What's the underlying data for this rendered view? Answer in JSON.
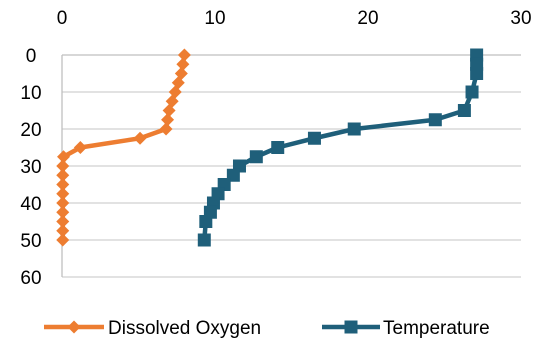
{
  "chart_data": {
    "type": "line",
    "title": "",
    "xlabel": "",
    "ylabel": "",
    "xlim": [
      0,
      30
    ],
    "ylim": [
      0,
      60
    ],
    "x_axis_position": "top",
    "y_axis_inverted": true,
    "x_ticks": [
      0,
      10,
      20,
      30
    ],
    "y_ticks": [
      0,
      10,
      20,
      30,
      40,
      50,
      60
    ],
    "grid": "horizontal",
    "legend_position": "bottom",
    "series": [
      {
        "name": "Dissolved Oxygen",
        "color": "#ED7D31",
        "marker": "diamond",
        "points": [
          [
            8.0,
            0
          ],
          [
            7.9,
            2.5
          ],
          [
            7.8,
            5
          ],
          [
            7.6,
            7.5
          ],
          [
            7.4,
            10
          ],
          [
            7.2,
            12.5
          ],
          [
            7.0,
            15
          ],
          [
            6.9,
            17.5
          ],
          [
            6.8,
            20
          ],
          [
            5.1,
            22.5
          ],
          [
            1.2,
            25
          ],
          [
            0.1,
            27.5
          ],
          [
            0.05,
            30
          ],
          [
            0.05,
            32.5
          ],
          [
            0.05,
            35
          ],
          [
            0.05,
            37.5
          ],
          [
            0.05,
            40
          ],
          [
            0.05,
            42.5
          ],
          [
            0.05,
            45
          ],
          [
            0.05,
            47.5
          ],
          [
            0.05,
            50
          ]
        ]
      },
      {
        "name": "Temperature",
        "color": "#1F5F7A",
        "marker": "square",
        "points": [
          [
            27.1,
            0
          ],
          [
            27.1,
            2.5
          ],
          [
            27.1,
            5
          ],
          [
            26.8,
            10
          ],
          [
            26.3,
            15
          ],
          [
            24.4,
            17.5
          ],
          [
            19.1,
            20
          ],
          [
            16.5,
            22.5
          ],
          [
            14.1,
            25
          ],
          [
            12.7,
            27.5
          ],
          [
            11.6,
            30
          ],
          [
            11.2,
            32.5
          ],
          [
            10.6,
            35
          ],
          [
            10.2,
            37.5
          ],
          [
            9.9,
            40
          ],
          [
            9.7,
            42.5
          ],
          [
            9.4,
            45
          ],
          [
            9.3,
            50
          ]
        ]
      }
    ]
  }
}
